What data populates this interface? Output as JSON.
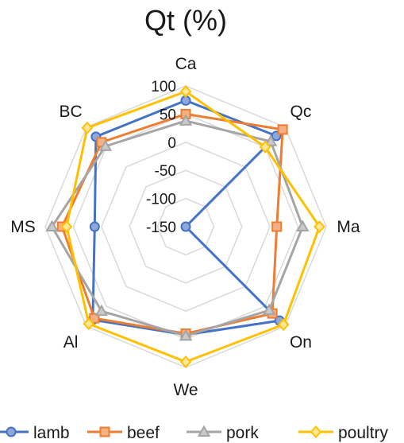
{
  "chart_data": {
    "type": "radar",
    "title": "Qt (%)",
    "axes": [
      "Ca",
      "Qc",
      "Ma",
      "On",
      "We",
      "Al",
      "MS",
      "BC"
    ],
    "r_ticks": [
      100,
      50,
      0,
      -50,
      -100,
      -150
    ],
    "r_tick_labels": [
      "100",
      "50",
      "0",
      "-50",
      "-100",
      "-150"
    ],
    "rlim": [
      -150,
      100
    ],
    "grid": true,
    "legend_position": "bottom",
    "series": [
      {
        "name": "lamb",
        "color": "#4472C4",
        "marker": "circle",
        "values": [
          74,
          78,
          -150,
          86,
          42,
          84,
          12,
          76
        ]
      },
      {
        "name": "beef",
        "color": "#ED7D31",
        "marker": "square",
        "values": [
          50,
          94,
          12,
          68,
          40,
          80,
          70,
          62
        ]
      },
      {
        "name": "pork",
        "color": "#A5A5A5",
        "marker": "triangle",
        "values": [
          38,
          64,
          58,
          60,
          44,
          62,
          88,
          52
        ]
      },
      {
        "name": "poultry",
        "color": "#FFC000",
        "marker": "diamond",
        "values": [
          90,
          50,
          88,
          96,
          90,
          94,
          62,
          98
        ]
      }
    ]
  }
}
